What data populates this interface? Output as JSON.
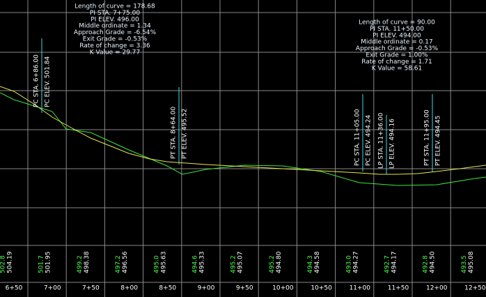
{
  "curve_1": {
    "lines": [
      "Length of curve = 178.68",
      "PI STA. 7+75.00",
      "PI ELEV. 496.00",
      "Middle ordinate = 1.34",
      "Approach Grade = -6.54%",
      "Exit Grade = -0.53%",
      "Rate of change = 3.36",
      "K Value = 29.77"
    ]
  },
  "curve_2": {
    "lines": [
      "Length of curve = 90.00",
      "PI STA. 11+50.00",
      "PI ELEV. 494.00",
      "Middle ordinate = 0.17",
      "Approach Grade = -0.53%",
      "Exit Grade = 1.00%",
      "Rate of change = 1.71",
      "K Value = 58.61"
    ]
  },
  "markers": [
    {
      "station": "PC STA. 6+86.00",
      "elevation": "PC ELEV. 501.84"
    },
    {
      "station": "PT STA. 8+64.00",
      "elevation": "PT ELEV. 495.52"
    },
    {
      "station": "PC STA. 11+05.00",
      "elevation": "PC ELEV. 494.24"
    },
    {
      "station": "LP STA. 11+36.00",
      "elevation": "LP ELEV. 494.16"
    },
    {
      "station": "PT STA. 11+95.00",
      "elevation": "PT ELEV. 494.45"
    }
  ],
  "stations": [
    "6+50",
    "7+00",
    "7+50",
    "8+00",
    "8+50",
    "9+00",
    "9+50",
    "10+00",
    "10+50",
    "11+00",
    "11+50",
    "12+00",
    "12+50"
  ],
  "existing_elevations": [
    "502.8",
    "501.7",
    "499.2",
    "497.2",
    "495.0",
    "494.6",
    "495.2",
    "495.2",
    "494.3",
    "493.0",
    "492.7",
    "492.8",
    "493.5"
  ],
  "profile_elevations": [
    "504.19",
    "501.95",
    "498.38",
    "496.56",
    "495.63",
    "495.33",
    "495.07",
    "494.80",
    "494.58",
    "494.27",
    "494.17",
    "494.50",
    "495.08"
  ]
}
